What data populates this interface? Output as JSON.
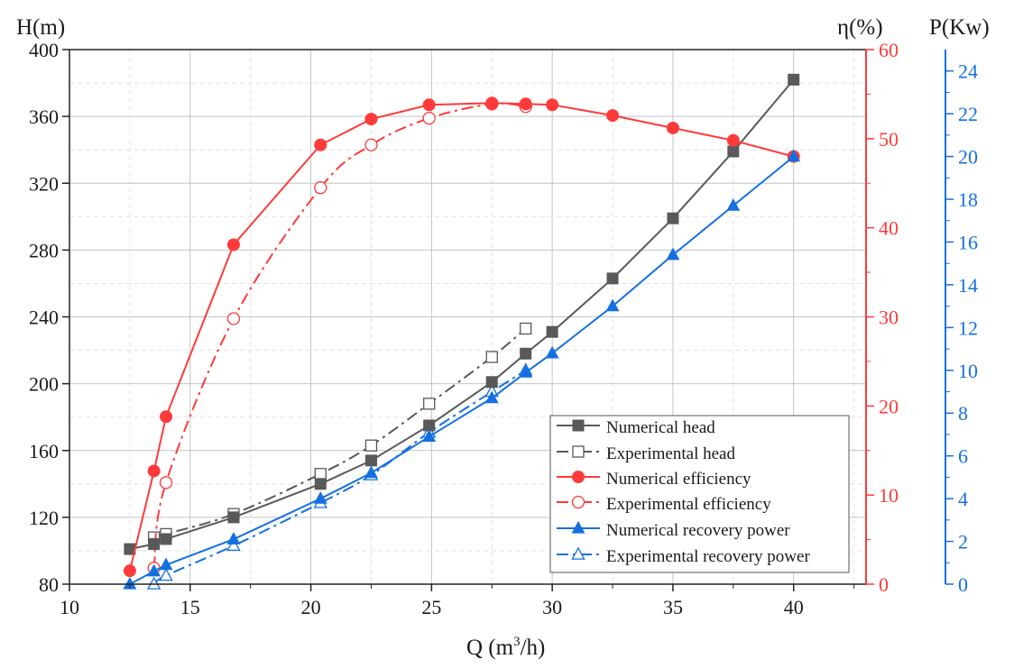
{
  "chart_data": {
    "type": "line",
    "xlabel": "Q (m",
    "xlabel_sup": "3",
    "xlabel_tail": "/h)",
    "y_left_label": "H(m)",
    "y_mid_label": "η(%)",
    "y_right_label": "P(Kw)",
    "xlim": [
      10,
      43
    ],
    "ylim_head": [
      80,
      400
    ],
    "ylim_eff": [
      0,
      60
    ],
    "ylim_power": [
      0,
      25
    ],
    "x_ticks": [
      10,
      15,
      20,
      25,
      30,
      35,
      40
    ],
    "head_ticks": [
      80,
      120,
      160,
      200,
      240,
      280,
      320,
      360,
      400
    ],
    "eff_ticks": [
      0,
      10,
      20,
      30,
      40,
      50,
      60
    ],
    "power_ticks": [
      0,
      2,
      4,
      6,
      8,
      10,
      12,
      14,
      16,
      18,
      20,
      22,
      24
    ],
    "grid": true,
    "legend_position": "bottom-right",
    "colors": {
      "head": "#595959",
      "efficiency": "#ff3a3a",
      "power": "#1470e0"
    },
    "series": [
      {
        "name": "Numerical head",
        "axis": "head",
        "color": "#595959",
        "dash": "solid",
        "marker": "square",
        "filled": true,
        "x": [
          12.5,
          13.5,
          14,
          16.8,
          20.4,
          22.5,
          24.9,
          27.5,
          28.9,
          30,
          32.5,
          35,
          37.5,
          40
        ],
        "values": [
          101,
          104,
          107,
          120,
          140,
          154,
          175,
          201,
          218,
          231,
          263,
          299,
          339,
          382
        ]
      },
      {
        "name": "Experimental head",
        "axis": "head",
        "color": "#595959",
        "dash": "dashdot",
        "marker": "square",
        "filled": false,
        "x": [
          13.5,
          14,
          16.8,
          20.4,
          22.5,
          24.9,
          27.5,
          28.9
        ],
        "values": [
          108,
          110,
          122,
          146,
          163,
          188,
          216,
          233
        ]
      },
      {
        "name": "Numerical efficiency",
        "axis": "eff",
        "color": "#ff3a3a",
        "dash": "solid",
        "marker": "circle",
        "filled": true,
        "x": [
          12.5,
          13.5,
          14,
          16.8,
          20.4,
          22.5,
          24.9,
          27.5,
          28.9,
          30,
          32.5,
          35,
          37.5,
          40
        ],
        "values": [
          1.5,
          12.7,
          18.8,
          38.1,
          49.3,
          52.2,
          53.8,
          54.0,
          53.9,
          53.8,
          52.6,
          51.2,
          49.8,
          48.0
        ]
      },
      {
        "name": "Experimental efficiency",
        "axis": "eff",
        "color": "#ff3a3a",
        "dash": "dashdot",
        "marker": "circle",
        "filled": false,
        "x": [
          13.5,
          14,
          16.8,
          20.4,
          22.5,
          24.9,
          27.5,
          28.9
        ],
        "values": [
          1.8,
          11.4,
          29.8,
          44.5,
          49.3,
          52.3,
          53.9,
          53.6
        ]
      },
      {
        "name": "Numerical recovery power",
        "axis": "power",
        "color": "#1470e0",
        "dash": "solid",
        "marker": "triangle",
        "filled": true,
        "x": [
          12.5,
          13.5,
          14,
          16.8,
          20.4,
          22.5,
          24.9,
          27.5,
          28.9,
          30,
          32.5,
          35,
          37.5,
          40
        ],
        "values": [
          0,
          0.6,
          0.9,
          2.1,
          4.0,
          5.2,
          6.9,
          8.7,
          9.9,
          10.8,
          13.0,
          15.4,
          17.7,
          20.0
        ]
      },
      {
        "name": "Experimental recovery power",
        "axis": "power",
        "color": "#1470e0",
        "dash": "dashdot",
        "marker": "triangle",
        "filled": false,
        "x": [
          13.5,
          14,
          16.8,
          20.4,
          22.5,
          24.9,
          27.5,
          28.9
        ],
        "values": [
          0,
          0.4,
          1.8,
          3.8,
          5.1,
          7.1,
          9.0,
          10.0
        ]
      }
    ]
  }
}
